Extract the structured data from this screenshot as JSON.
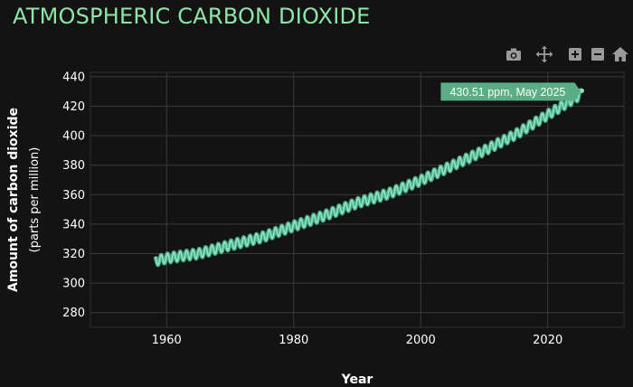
{
  "page_title": "ATMOSPHERIC CARBON DIOXIDE",
  "toolbar": {
    "icons": [
      "camera-icon",
      "pan-icon",
      "zoom-in-icon",
      "zoom-out-icon",
      "home-icon"
    ]
  },
  "colors": {
    "background": "#131313",
    "title": "#8ee5a8",
    "line": "#8fe6bf",
    "line_dark": "#49a98a",
    "tooltip": "#5aad84",
    "grid": "#3a3a3a"
  },
  "chart_data": {
    "type": "line",
    "xlabel": "Year",
    "ylabel": "Amount of carbon dioxide",
    "ylabel_sub": "(parts per million)",
    "xlim": [
      1948,
      2032
    ],
    "ylim": [
      270,
      443
    ],
    "xticks": [
      1960,
      1980,
      2000,
      2020
    ],
    "yticks": [
      280,
      300,
      320,
      340,
      360,
      380,
      400,
      420,
      440
    ],
    "grid": true,
    "trend_knots": [
      [
        1958.2,
        315.0
      ],
      [
        1960,
        316.9
      ],
      [
        1965,
        320.0
      ],
      [
        1970,
        325.7
      ],
      [
        1975,
        331.1
      ],
      [
        1980,
        338.7
      ],
      [
        1985,
        346.0
      ],
      [
        1990,
        354.4
      ],
      [
        1995,
        360.8
      ],
      [
        2000,
        369.7
      ],
      [
        2005,
        379.8
      ],
      [
        2010,
        389.9
      ],
      [
        2015,
        401.0
      ],
      [
        2020,
        414.2
      ],
      [
        2025.4,
        428.5
      ]
    ],
    "seasonal_amplitude_ppm": 3.2,
    "last_point": {
      "x": 2025.37,
      "y": 430.51
    },
    "annotation": "430.51 ppm, May 2025"
  }
}
